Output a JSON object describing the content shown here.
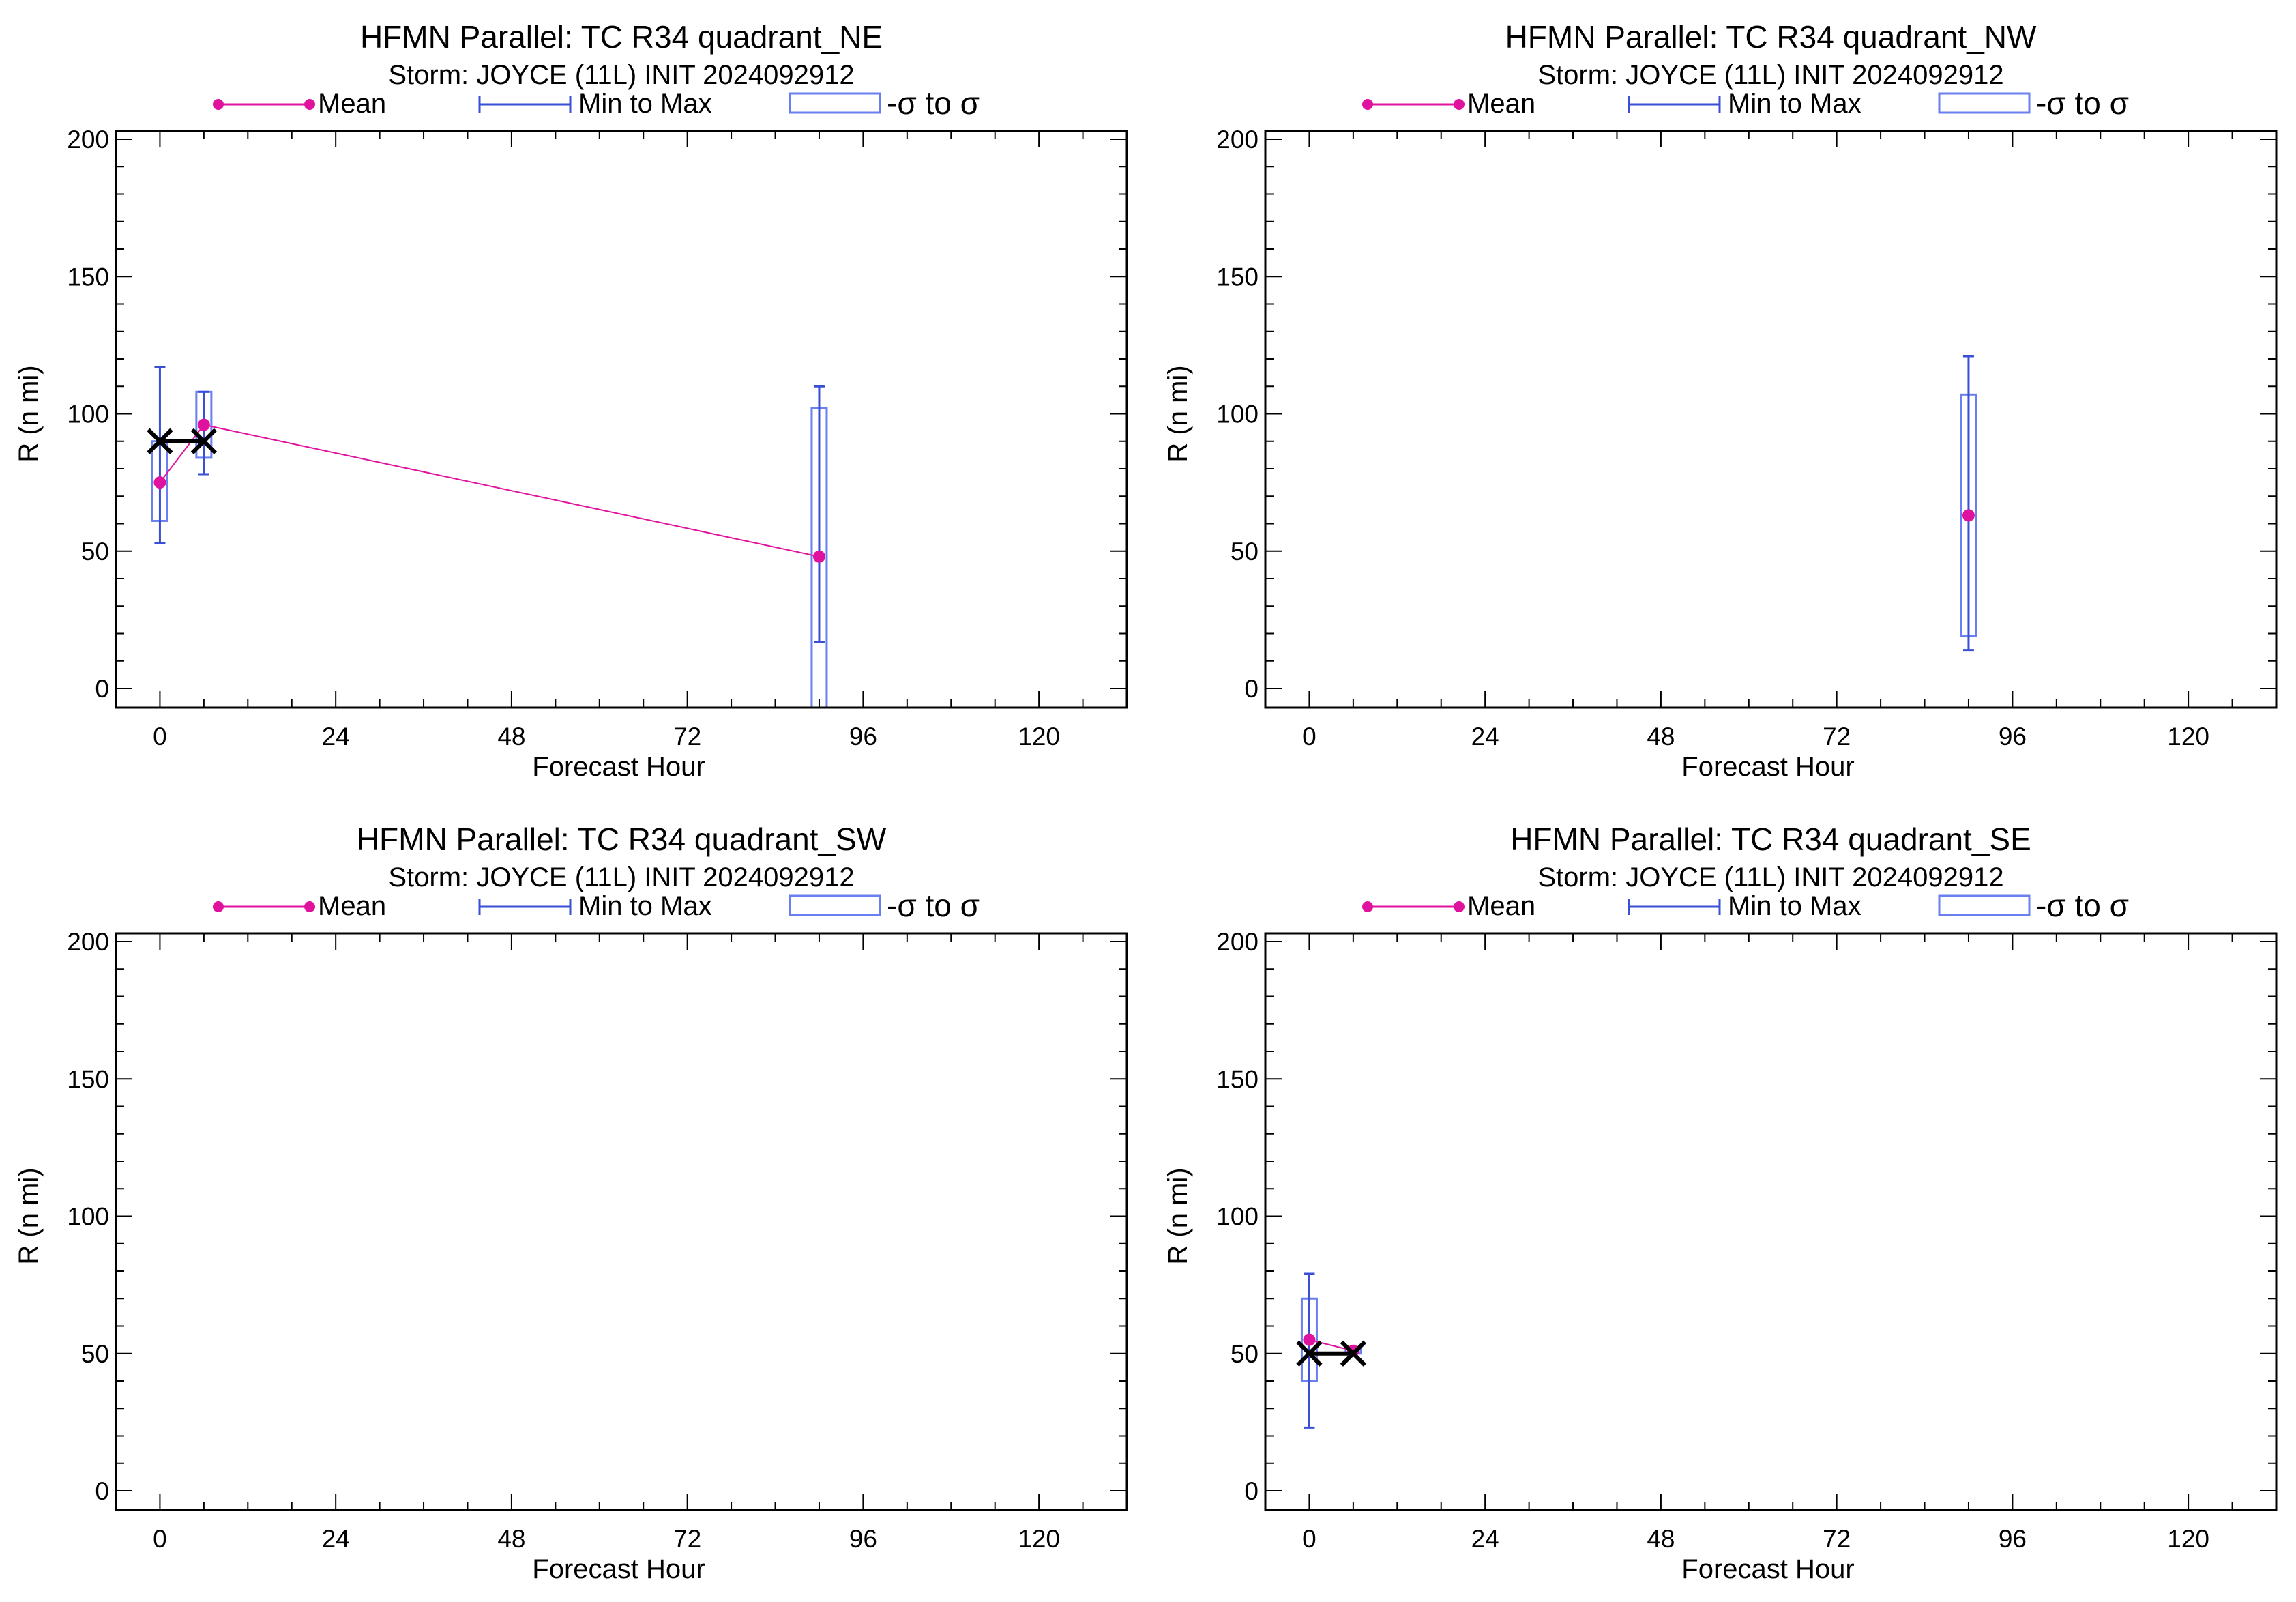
{
  "colors": {
    "mean": "#e0139e",
    "minmax": "#3a4fd6",
    "sigma_box": "#6a7ff0",
    "best_track": "#000000",
    "frame": "#000000"
  },
  "legend": {
    "mean": "Mean",
    "minmax": "Min to Max",
    "sigma": "-σ to σ"
  },
  "chart_data": [
    {
      "type": "scatter",
      "title": "HFMN Parallel: TC  R34 quadrant_NE",
      "subtitle": "Storm: JOYCE (11L) INIT 2024092912",
      "xlabel": "Forecast Hour",
      "ylabel": "R (n mi)",
      "xlim": [
        -6,
        132
      ],
      "ylim": [
        0,
        200
      ],
      "xticks": [
        0,
        24,
        48,
        72,
        96,
        120
      ],
      "yticks": [
        0,
        50,
        100,
        150,
        200
      ],
      "legend_position": "top",
      "mean": [
        {
          "x": 0,
          "y": 75
        },
        {
          "x": 6,
          "y": 96
        },
        {
          "x": 90,
          "y": 48
        }
      ],
      "min_max": [
        {
          "x": 0,
          "min": 53,
          "max": 117
        },
        {
          "x": 6,
          "min": 78,
          "max": 108
        },
        {
          "x": 90,
          "min": 17,
          "max": 110
        }
      ],
      "sigma": [
        {
          "x": 0,
          "low": 61,
          "high": 90
        },
        {
          "x": 6,
          "low": 84,
          "high": 108
        },
        {
          "x": 90,
          "low": -7,
          "high": 102
        }
      ],
      "best_track": [
        {
          "x": 0,
          "y": 90
        },
        {
          "x": 6,
          "y": 90
        }
      ]
    },
    {
      "type": "scatter",
      "title": "HFMN Parallel: TC  R34 quadrant_NW",
      "subtitle": "Storm: JOYCE (11L) INIT 2024092912",
      "xlabel": "Forecast Hour",
      "ylabel": "R (n mi)",
      "xlim": [
        -6,
        132
      ],
      "ylim": [
        0,
        200
      ],
      "xticks": [
        0,
        24,
        48,
        72,
        96,
        120
      ],
      "yticks": [
        0,
        50,
        100,
        150,
        200
      ],
      "legend_position": "top",
      "mean": [
        {
          "x": 90,
          "y": 63
        }
      ],
      "min_max": [
        {
          "x": 90,
          "min": 14,
          "max": 121
        }
      ],
      "sigma": [
        {
          "x": 90,
          "low": 19,
          "high": 107
        }
      ],
      "best_track": []
    },
    {
      "type": "scatter",
      "title": "HFMN Parallel: TC  R34 quadrant_SW",
      "subtitle": "Storm: JOYCE (11L) INIT 2024092912",
      "xlabel": "Forecast Hour",
      "ylabel": "R (n mi)",
      "xlim": [
        -6,
        132
      ],
      "ylim": [
        0,
        200
      ],
      "xticks": [
        0,
        24,
        48,
        72,
        96,
        120
      ],
      "yticks": [
        0,
        50,
        100,
        150,
        200
      ],
      "legend_position": "top",
      "mean": [],
      "min_max": [],
      "sigma": [],
      "best_track": []
    },
    {
      "type": "scatter",
      "title": "HFMN Parallel: TC  R34 quadrant_SE",
      "subtitle": "Storm: JOYCE (11L) INIT 2024092912",
      "xlabel": "Forecast Hour",
      "ylabel": "R (n mi)",
      "xlim": [
        -6,
        132
      ],
      "ylim": [
        0,
        200
      ],
      "xticks": [
        0,
        24,
        48,
        72,
        96,
        120
      ],
      "yticks": [
        0,
        50,
        100,
        150,
        200
      ],
      "legend_position": "top",
      "mean": [
        {
          "x": 0,
          "y": 55
        },
        {
          "x": 6,
          "y": 51
        }
      ],
      "min_max": [
        {
          "x": 0,
          "min": 23,
          "max": 79
        },
        {
          "x": 6,
          "min": 51,
          "max": 51
        }
      ],
      "sigma": [
        {
          "x": 0,
          "low": 40,
          "high": 70
        },
        {
          "x": 6,
          "low": 50,
          "high": 52
        }
      ],
      "best_track": [
        {
          "x": 0,
          "y": 50
        },
        {
          "x": 6,
          "y": 50
        }
      ]
    }
  ]
}
